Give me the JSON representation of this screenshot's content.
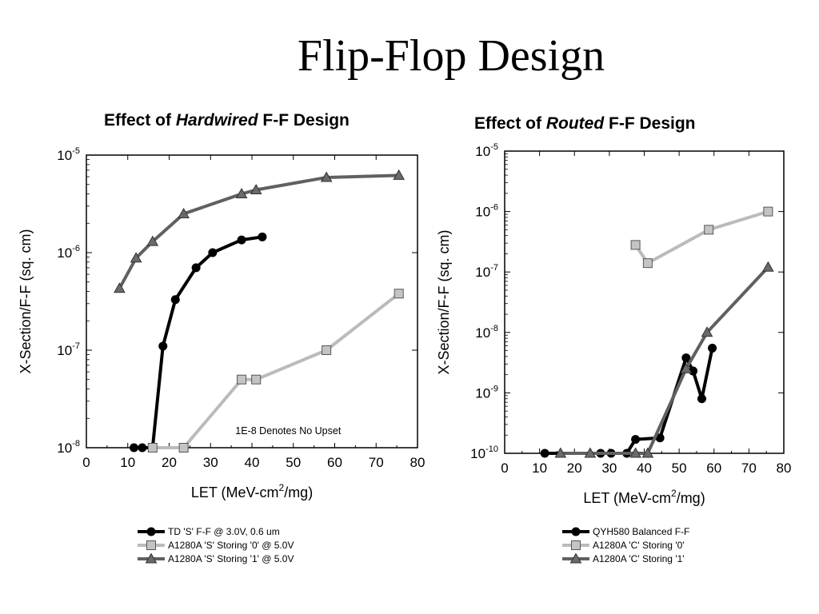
{
  "slide": {
    "title": "Flip-Flop Design"
  },
  "chart_data": [
    {
      "type": "line",
      "title_prefix": "Effect of ",
      "title_emphasis": "Hardwired",
      "title_suffix": " F-F Design",
      "xlabel": "LET (MeV-cm",
      "xlabel_sup": "2",
      "xlabel_suffix": "/mg)",
      "ylabel": "X-Section/F-F (sq. cm)",
      "xlim": [
        0,
        80
      ],
      "ylim": [
        1e-08,
        1e-05
      ],
      "yscale": "log",
      "xticks": [
        0,
        10,
        20,
        30,
        40,
        50,
        60,
        70,
        80
      ],
      "yticks": [
        {
          "value": 1e-08,
          "base": "10",
          "exp": "-8"
        },
        {
          "value": 1e-07,
          "base": "10",
          "exp": "-7"
        },
        {
          "value": 1e-06,
          "base": "10",
          "exp": "-6"
        },
        {
          "value": 1e-05,
          "base": "10",
          "exp": "-5"
        }
      ],
      "annotation": "1E-8 Denotes No Upset",
      "grid": false,
      "legend_position": "below",
      "series": [
        {
          "name": "TD 'S' F-F @ 3.0V, 0.6 um",
          "marker": "circle",
          "color": "#000000",
          "x": [
            11.5,
            13.5,
            16,
            18.5,
            21.5,
            26.5,
            30.5,
            37.5,
            42.5
          ],
          "y": [
            1e-08,
            1e-08,
            1e-08,
            1.1e-07,
            3.3e-07,
            7e-07,
            1e-06,
            1.35e-06,
            1.45e-06
          ]
        },
        {
          "name": "A1280A 'S' Storing '0' @ 5.0V",
          "marker": "square",
          "color": "#bbbbbb",
          "x": [
            16,
            23.5,
            37.5,
            41,
            58,
            75.5
          ],
          "y": [
            1e-08,
            1e-08,
            5e-08,
            5e-08,
            1e-07,
            3.8e-07
          ]
        },
        {
          "name": "A1280A 'S' Storing '1' @ 5.0V",
          "marker": "triangle",
          "color": "#606060",
          "x": [
            8,
            12,
            16,
            23.5,
            37.5,
            41,
            58,
            75.5
          ],
          "y": [
            4.3e-07,
            8.8e-07,
            1.3e-06,
            2.5e-06,
            4e-06,
            4.4e-06,
            5.9e-06,
            6.2e-06
          ]
        }
      ]
    },
    {
      "type": "line",
      "title_prefix": "Effect of ",
      "title_emphasis": "Routed",
      "title_suffix": " F-F Design",
      "xlabel": "LET (MeV-cm",
      "xlabel_sup": "2",
      "xlabel_suffix": "/mg)",
      "ylabel": "X-Section/F-F (sq. cm)",
      "xlim": [
        0,
        80
      ],
      "ylim": [
        1e-10,
        1e-05
      ],
      "yscale": "log",
      "xticks": [
        0,
        10,
        20,
        30,
        40,
        50,
        60,
        70,
        80
      ],
      "yticks": [
        {
          "value": 1e-10,
          "base": "10",
          "exp": "-10"
        },
        {
          "value": 1e-09,
          "base": "10",
          "exp": "-9"
        },
        {
          "value": 1e-08,
          "base": "10",
          "exp": "-8"
        },
        {
          "value": 1e-07,
          "base": "10",
          "exp": "-7"
        },
        {
          "value": 1e-06,
          "base": "10",
          "exp": "-6"
        },
        {
          "value": 1e-05,
          "base": "10",
          "exp": "-5"
        }
      ],
      "grid": false,
      "legend_position": "below",
      "series": [
        {
          "name": "QYH580 Balanced F-F",
          "marker": "circle",
          "color": "#000000",
          "x": [
            11.5,
            27.5,
            30.5,
            35,
            37.5,
            44.5,
            52,
            54,
            56.5,
            59.5
          ],
          "y": [
            1e-10,
            1e-10,
            1e-10,
            1e-10,
            1.7e-10,
            1.8e-10,
            3.8e-09,
            2.3e-09,
            8e-10,
            5.5e-09
          ]
        },
        {
          "name": "A1280A 'C' Storing '0'",
          "marker": "square",
          "color": "#bbbbbb",
          "x": [
            37.5,
            41,
            58.5,
            75.5
          ],
          "y": [
            2.8e-07,
            1.4e-07,
            5e-07,
            1e-06
          ]
        },
        {
          "name": "A1280A 'C' Storing '1'",
          "marker": "triangle",
          "color": "#606060",
          "x": [
            16,
            24.5,
            37.5,
            41,
            52,
            58,
            75.5
          ],
          "y": [
            1e-10,
            1e-10,
            1e-10,
            1e-10,
            2.5e-09,
            1e-08,
            1.2e-07
          ]
        }
      ]
    }
  ]
}
